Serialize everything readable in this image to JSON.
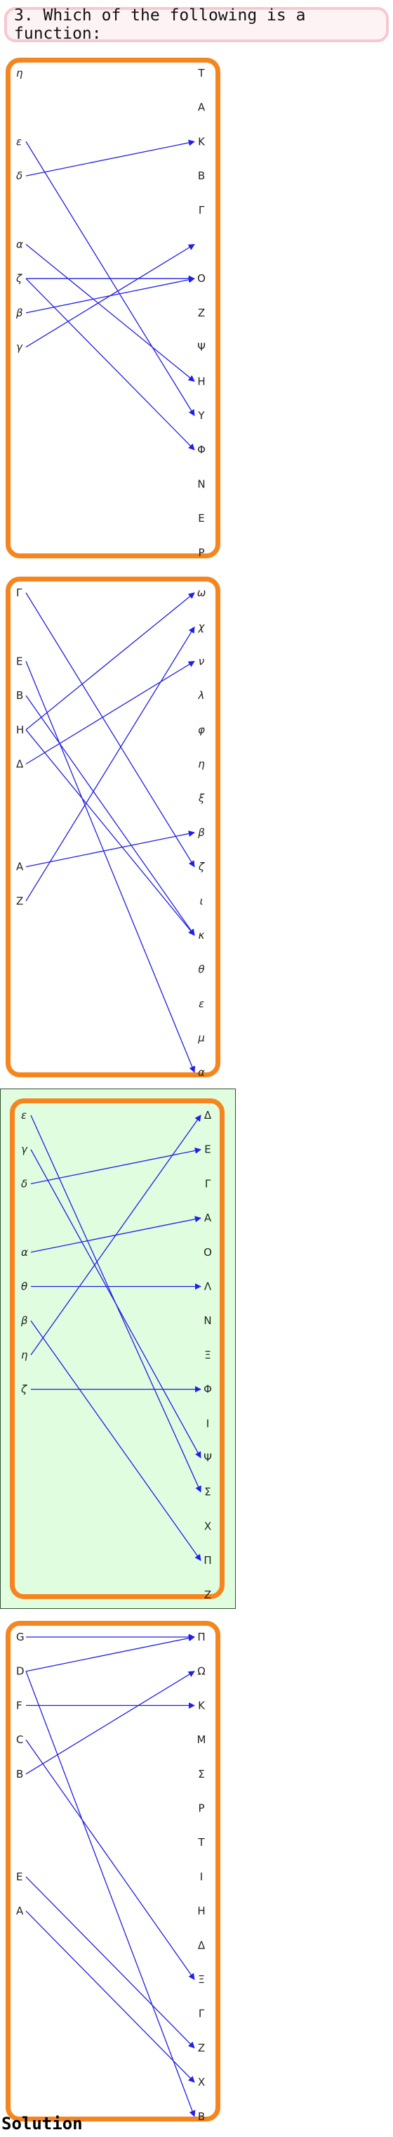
{
  "question": "3. Which of the following is a function:",
  "solution_label": "Solution",
  "colors": {
    "panel_border": "#f5861f",
    "arrow": "#1f1fe6",
    "selected_bg": "#e0fde0"
  },
  "panels": [
    {
      "selected": false,
      "italic_left": true,
      "italic_right": false,
      "left": [
        "η",
        "",
        "ε",
        "δ",
        "",
        "α",
        "ζ",
        "β",
        "γ"
      ],
      "right": [
        "T",
        "A",
        "K",
        "B",
        "Γ",
        "",
        "O",
        "Z",
        "Ψ",
        "H",
        "Y",
        "Φ",
        "N",
        "E",
        "P"
      ],
      "arrows": [
        [
          2,
          10
        ],
        [
          3,
          2
        ],
        [
          5,
          9
        ],
        [
          6,
          6
        ],
        [
          6,
          11
        ],
        [
          7,
          6
        ],
        [
          8,
          5
        ]
      ]
    },
    {
      "selected": false,
      "italic_left": false,
      "italic_right": true,
      "left": [
        "Γ",
        "",
        "E",
        "B",
        "H",
        "Δ",
        "",
        "",
        "A",
        "Z"
      ],
      "right": [
        "ω",
        "χ",
        "ν",
        "λ",
        "φ",
        "η",
        "ξ",
        "β",
        "ζ",
        "ι",
        "κ",
        "θ",
        "ε",
        "μ",
        "α"
      ],
      "arrows": [
        [
          0,
          8
        ],
        [
          2,
          14
        ],
        [
          3,
          10
        ],
        [
          4,
          0
        ],
        [
          4,
          10
        ],
        [
          5,
          2
        ],
        [
          8,
          7
        ],
        [
          9,
          1
        ]
      ]
    },
    {
      "selected": true,
      "italic_left": true,
      "italic_right": false,
      "left": [
        "ε",
        "γ",
        "δ",
        "",
        "α",
        "θ",
        "β",
        "η",
        "ζ"
      ],
      "right": [
        "Δ",
        "E",
        "Γ",
        "A",
        "O",
        "Λ",
        "N",
        "Ξ",
        "Φ",
        "I",
        "Ψ",
        "Σ",
        "X",
        "Π",
        "Z"
      ],
      "arrows": [
        [
          0,
          11
        ],
        [
          1,
          10
        ],
        [
          2,
          1
        ],
        [
          4,
          3
        ],
        [
          5,
          5
        ],
        [
          6,
          13
        ],
        [
          7,
          0
        ],
        [
          8,
          8
        ]
      ]
    },
    {
      "selected": false,
      "italic_left": false,
      "italic_right": false,
      "left": [
        "G",
        "D",
        "F",
        "C",
        "B",
        "",
        "",
        "E",
        "A"
      ],
      "right": [
        "Π",
        "Ω",
        "K",
        "M",
        "Σ",
        "P",
        "T",
        "I",
        "H",
        "Δ",
        "Ξ",
        "Γ",
        "Z",
        "X",
        "B"
      ],
      "arrows": [
        [
          0,
          0
        ],
        [
          1,
          0
        ],
        [
          1,
          14
        ],
        [
          2,
          2
        ],
        [
          3,
          10
        ],
        [
          4,
          1
        ],
        [
          7,
          12
        ],
        [
          8,
          13
        ]
      ]
    }
  ]
}
